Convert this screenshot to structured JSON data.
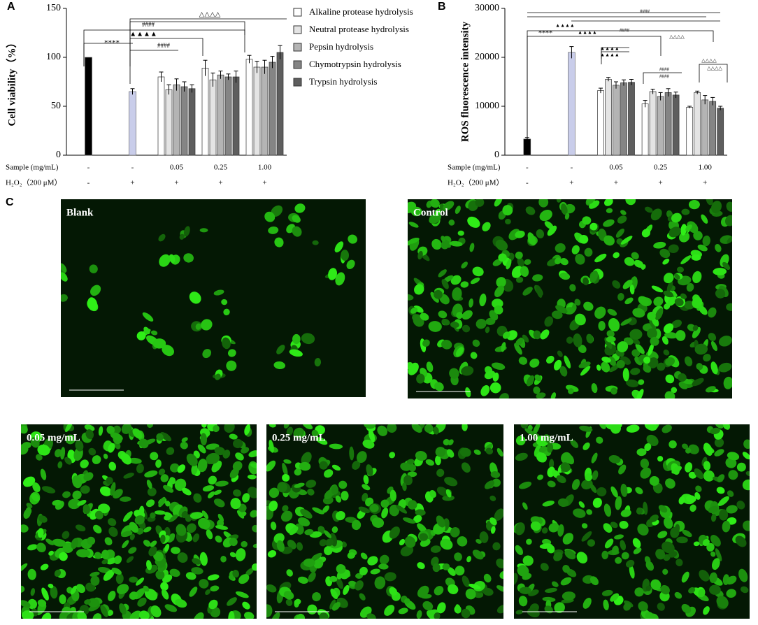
{
  "panels": {
    "a": "A",
    "b": "B",
    "c": "C"
  },
  "chart_data": [
    {
      "type": "grouped-bar",
      "y_label": "Cell viability（%）",
      "ylim": [
        0,
        150
      ],
      "yticks": [
        0,
        50,
        100,
        150
      ],
      "row_labels": [
        "Sample (mg/mL)",
        "H₂O₂（200 μM）"
      ],
      "categories": [
        "-",
        "-",
        "0.05",
        "0.25",
        "1.00"
      ],
      "treatment": [
        "-",
        "+",
        "+",
        "+",
        "+"
      ],
      "single_values": [
        100,
        65,
        null,
        null,
        null
      ],
      "single_errors": [
        null,
        3,
        null,
        null,
        null
      ],
      "single_colors": [
        "#000000",
        "#c9cdea",
        null,
        null,
        null
      ],
      "series": [
        {
          "name": "Alkaline protease hydrolysis",
          "color": "#ffffff",
          "values": [
            null,
            null,
            80,
            89,
            98
          ],
          "errors": [
            null,
            null,
            5,
            8,
            4
          ]
        },
        {
          "name": "Neutral protease hydrolysis",
          "color": "#e4e4e4",
          "values": [
            null,
            null,
            67,
            77,
            90
          ],
          "errors": [
            null,
            null,
            5,
            7,
            6
          ]
        },
        {
          "name": "Pepsin hydrolysis",
          "color": "#b4b4b4",
          "values": [
            null,
            null,
            72,
            82,
            90
          ],
          "errors": [
            null,
            null,
            6,
            4,
            7
          ]
        },
        {
          "name": "Chymotrypsin hydrolysis",
          "color": "#858585",
          "values": [
            null,
            null,
            70,
            80,
            95
          ],
          "errors": [
            null,
            null,
            5,
            3,
            6
          ]
        },
        {
          "name": "Trypsin hydrolysis",
          "color": "#5e5e5e",
          "values": [
            null,
            null,
            68,
            80,
            105
          ],
          "errors": [
            null,
            null,
            4,
            6,
            7
          ]
        }
      ],
      "annotations": [
        "****",
        "▲▲▲▲",
        "####",
        "####",
        "△△△△"
      ]
    },
    {
      "type": "grouped-bar",
      "y_label": "ROS fluorescence intensity",
      "ylim": [
        0,
        30000
      ],
      "yticks": [
        0,
        10000,
        20000,
        30000
      ],
      "row_labels": [
        "Sample (mg/mL)",
        "H₂O₂（200 μM）"
      ],
      "categories": [
        "-",
        "-",
        "0.05",
        "0.25",
        "1.00"
      ],
      "treatment": [
        "-",
        "+",
        "+",
        "+",
        "+"
      ],
      "single_values": [
        3300,
        21000,
        null,
        null,
        null
      ],
      "single_errors": [
        300,
        1200,
        null,
        null,
        null
      ],
      "single_colors": [
        "#000000",
        "#c9cdea",
        null,
        null,
        null
      ],
      "series": [
        {
          "color": "#ffffff",
          "values": [
            null,
            null,
            13200,
            10500,
            9800
          ],
          "errors": [
            null,
            null,
            500,
            700,
            200
          ]
        },
        {
          "color": "#e4e4e4",
          "values": [
            null,
            null,
            15500,
            13000,
            12800
          ],
          "errors": [
            null,
            null,
            400,
            500,
            300
          ]
        },
        {
          "color": "#b4b4b4",
          "values": [
            null,
            null,
            14300,
            12000,
            11300
          ],
          "errors": [
            null,
            null,
            700,
            800,
            900
          ]
        },
        {
          "color": "#858585",
          "values": [
            null,
            null,
            14800,
            12800,
            11000
          ],
          "errors": [
            null,
            null,
            600,
            800,
            800
          ]
        },
        {
          "color": "#5e5e5e",
          "values": [
            null,
            null,
            14900,
            12300,
            9600
          ],
          "errors": [
            null,
            null,
            600,
            600,
            400
          ]
        }
      ],
      "annotations": [
        "****",
        "▲▲▲▲",
        "▲▲▲▲",
        "####",
        "####",
        "▲▲▲▲",
        "▲▲▲▲",
        "####",
        "####",
        "△△△△",
        "△△△△",
        "△△△△"
      ]
    }
  ],
  "images": [
    "Blank",
    "Control",
    "0.05 mg/mL",
    "0.25 mg/mL",
    "1.00 mg/mL"
  ]
}
